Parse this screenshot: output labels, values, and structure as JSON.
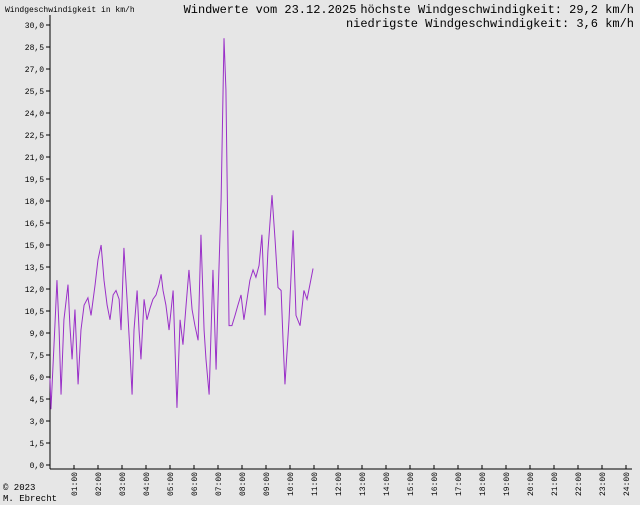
{
  "chart_data": {
    "type": "line",
    "title": "Windwerte vom 23.12.2025",
    "y_label": "Windgeschwindigkeit in km/h",
    "annotations": [
      "höchste Windgeschwindigkeit: 29,2 km/h",
      "niedrigste Windgeschwindigkeit: 3,6 km/h"
    ],
    "footer": [
      "© 2023",
      "M. Ebrecht"
    ],
    "xlim": [
      0,
      24
    ],
    "ylim": [
      0,
      30
    ],
    "xticks": [
      {
        "value": 1,
        "label": "01:00"
      },
      {
        "value": 2,
        "label": "02:00"
      },
      {
        "value": 3,
        "label": "03:00"
      },
      {
        "value": 4,
        "label": "04:00"
      },
      {
        "value": 5,
        "label": "05:00"
      },
      {
        "value": 6,
        "label": "06:00"
      },
      {
        "value": 7,
        "label": "07:00"
      },
      {
        "value": 8,
        "label": "08:00"
      },
      {
        "value": 9,
        "label": "09:00"
      },
      {
        "value": 10,
        "label": "10:00"
      },
      {
        "value": 11,
        "label": "11:00"
      },
      {
        "value": 12,
        "label": "12:00"
      },
      {
        "value": 13,
        "label": "13:00"
      },
      {
        "value": 14,
        "label": "14:00"
      },
      {
        "value": 15,
        "label": "15:00"
      },
      {
        "value": 16,
        "label": "16:00"
      },
      {
        "value": 17,
        "label": "17:00"
      },
      {
        "value": 18,
        "label": "18:00"
      },
      {
        "value": 19,
        "label": "19:00"
      },
      {
        "value": 20,
        "label": "20:00"
      },
      {
        "value": 21,
        "label": "21:00"
      },
      {
        "value": 22,
        "label": "22:00"
      },
      {
        "value": 23,
        "label": "23:00"
      },
      {
        "value": 24,
        "label": "24:00"
      }
    ],
    "yticks": [
      {
        "value": 0,
        "label": "0,0"
      },
      {
        "value": 1.5,
        "label": "1,5"
      },
      {
        "value": 3,
        "label": "3,0"
      },
      {
        "value": 4.5,
        "label": "4,5"
      },
      {
        "value": 6,
        "label": "6,0"
      },
      {
        "value": 7.5,
        "label": "7,5"
      },
      {
        "value": 9,
        "label": "9,0"
      },
      {
        "value": 10.5,
        "label": "10,5"
      },
      {
        "value": 12,
        "label": "12,0"
      },
      {
        "value": 13.5,
        "label": "13,5"
      },
      {
        "value": 15,
        "label": "15,0"
      },
      {
        "value": 16.5,
        "label": "16,5"
      },
      {
        "value": 18,
        "label": "18,0"
      },
      {
        "value": 19.5,
        "label": "19,5"
      },
      {
        "value": 21,
        "label": "21,0"
      },
      {
        "value": 22.5,
        "label": "22,5"
      },
      {
        "value": 24,
        "label": "24,0"
      },
      {
        "value": 25.5,
        "label": "25,5"
      },
      {
        "value": 27,
        "label": "27,0"
      },
      {
        "value": 28.5,
        "label": "28,5"
      },
      {
        "value": 30,
        "label": "30,0"
      }
    ],
    "color": "#9a30c8",
    "x": [
      0.0,
      0.04,
      0.21,
      0.29,
      0.38,
      0.46,
      0.58,
      0.75,
      0.83,
      0.92,
      1.04,
      1.17,
      1.29,
      1.42,
      1.58,
      1.71,
      1.88,
      2.0,
      2.13,
      2.25,
      2.38,
      2.5,
      2.63,
      2.75,
      2.88,
      2.96,
      3.08,
      3.21,
      3.33,
      3.42,
      3.5,
      3.63,
      3.71,
      3.79,
      3.92,
      4.04,
      4.17,
      4.29,
      4.42,
      4.54,
      4.63,
      4.71,
      4.83,
      4.96,
      5.13,
      5.29,
      5.42,
      5.54,
      5.67,
      5.79,
      5.92,
      6.04,
      6.17,
      6.29,
      6.42,
      6.5,
      6.63,
      6.79,
      6.92,
      7.0,
      7.13,
      7.25,
      7.33,
      7.46,
      7.58,
      7.71,
      7.83,
      7.96,
      8.08,
      8.21,
      8.33,
      8.46,
      8.58,
      8.71,
      8.83,
      8.96,
      9.08,
      9.25,
      9.38,
      9.5,
      9.63,
      9.71,
      9.79,
      9.96,
      10.13,
      10.25,
      10.42,
      10.58,
      10.71,
      10.83,
      10.96
    ],
    "values": [
      5.9,
      3.8,
      9.7,
      12.6,
      9.2,
      4.8,
      9.9,
      12.3,
      9.5,
      7.2,
      10.6,
      5.5,
      9.2,
      10.9,
      11.4,
      10.2,
      12.3,
      14.0,
      15.0,
      12.6,
      10.9,
      9.9,
      11.6,
      11.9,
      11.3,
      9.2,
      14.8,
      11.3,
      7.8,
      4.8,
      9.2,
      11.9,
      9.2,
      7.2,
      11.3,
      9.9,
      10.7,
      11.3,
      11.6,
      12.3,
      13.0,
      11.9,
      10.9,
      9.2,
      11.9,
      3.9,
      9.9,
      8.2,
      10.9,
      13.3,
      10.6,
      9.5,
      8.5,
      15.7,
      9.2,
      7.2,
      4.8,
      13.3,
      6.5,
      11.3,
      18.1,
      29.1,
      25.6,
      9.5,
      9.5,
      10.2,
      10.9,
      11.6,
      9.9,
      11.3,
      12.6,
      13.3,
      12.8,
      13.6,
      15.7,
      10.2,
      14.6,
      18.4,
      15.3,
      12.1,
      11.9,
      8.5,
      5.5,
      9.9,
      16.0,
      10.2,
      9.5,
      11.9,
      11.3,
      12.3,
      13.4
    ]
  }
}
